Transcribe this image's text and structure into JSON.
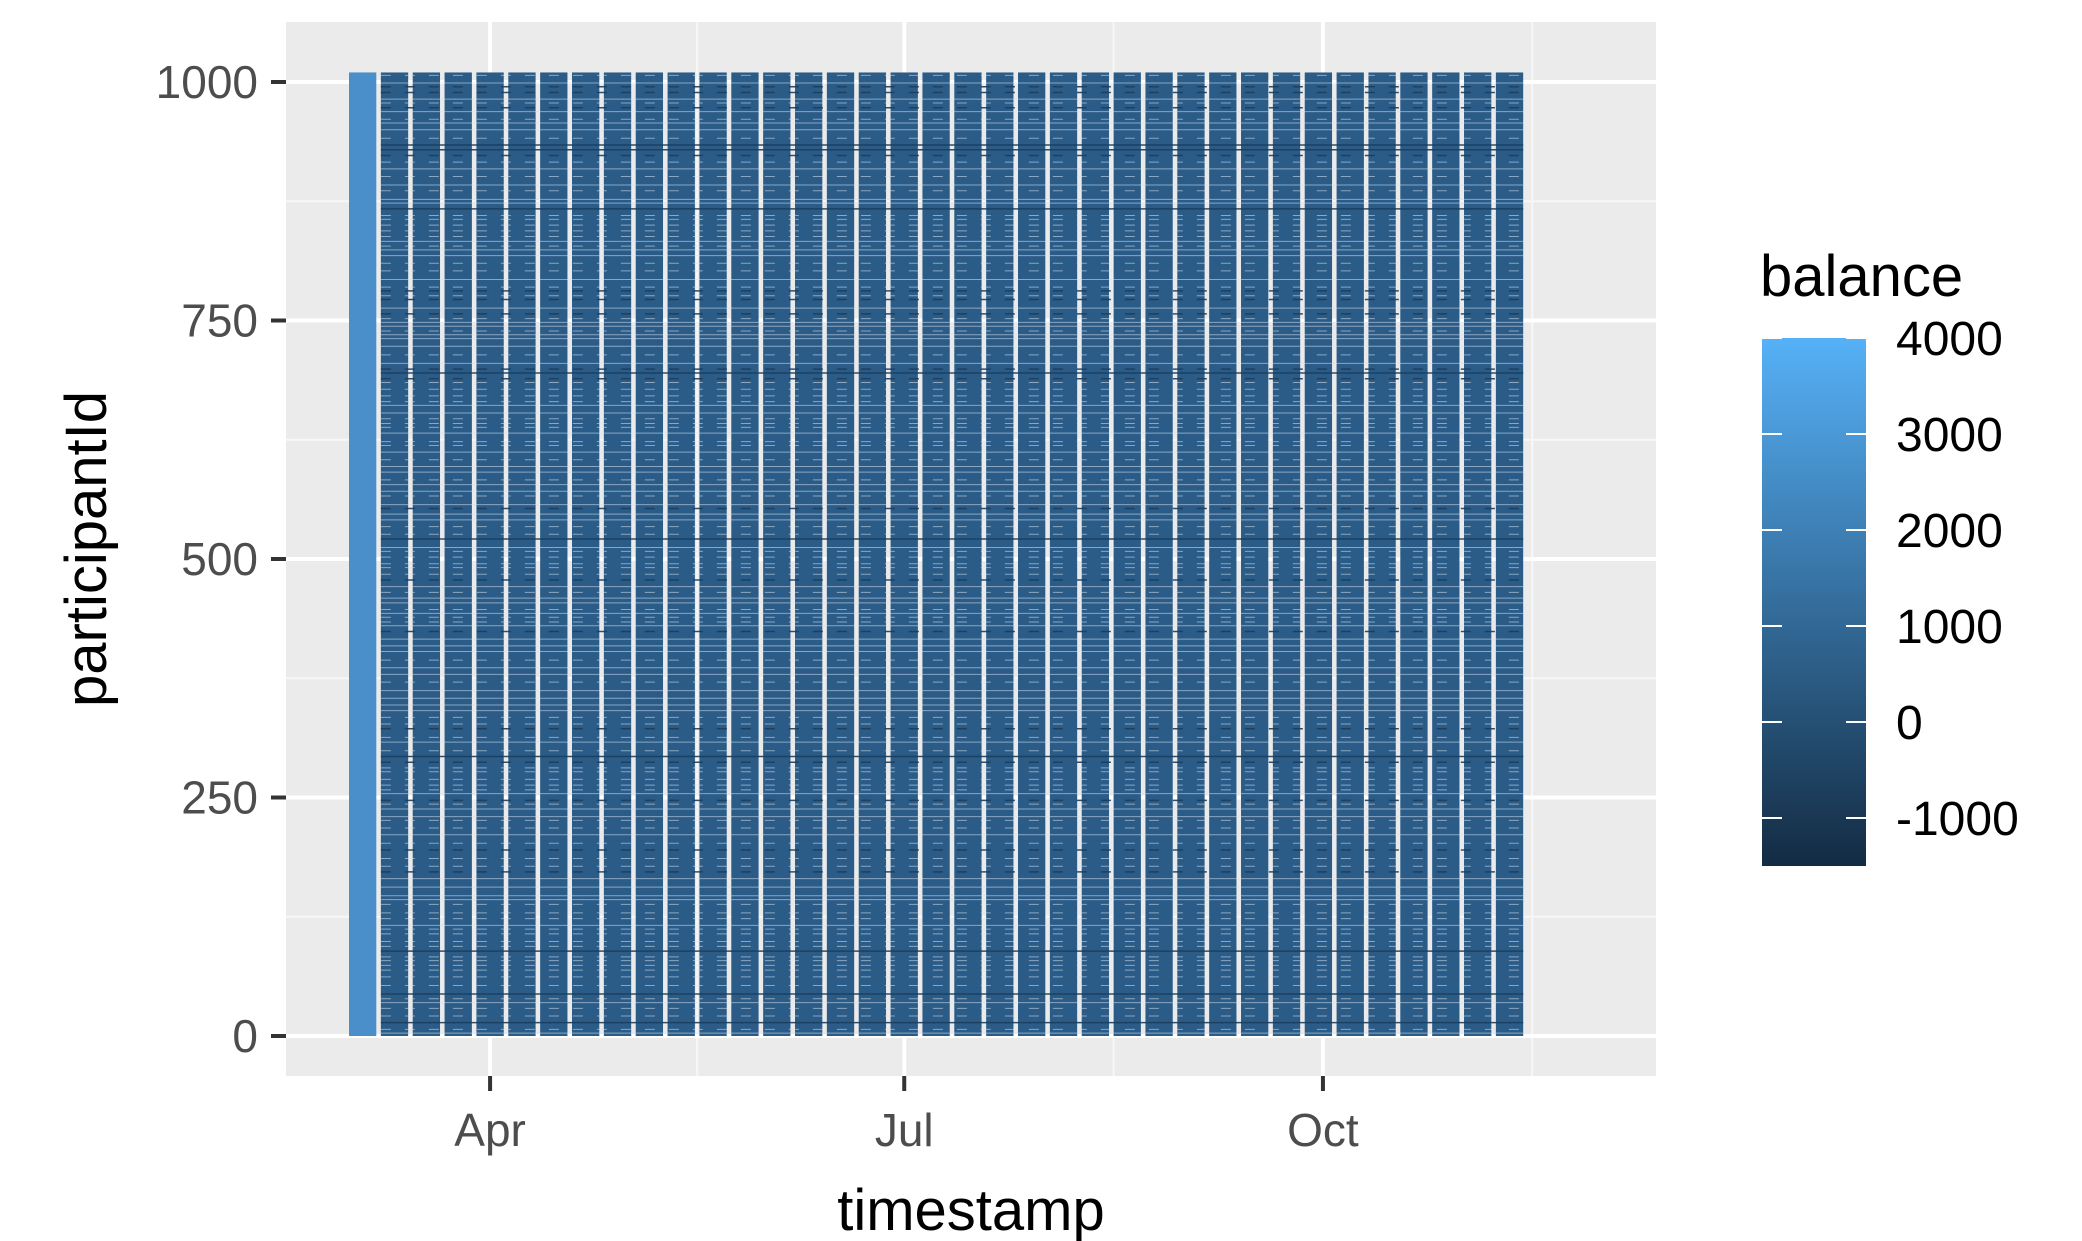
{
  "chart_data": {
    "type": "heatmap",
    "title": "",
    "xlabel": "timestamp",
    "ylabel": "participantId",
    "x_axis": {
      "type": "date",
      "range": [
        "2022-03-01",
        "2022-11-30"
      ],
      "tick_values": [
        "2022-04-01",
        "2022-07-01",
        "2022-10-01"
      ],
      "tick_labels": [
        "Apr",
        "Jul",
        "Oct"
      ]
    },
    "y_axis": {
      "range": [
        0,
        1010
      ],
      "tick_values": [
        0,
        250,
        500,
        750,
        1000
      ],
      "tick_labels": [
        "0",
        "250",
        "500",
        "750",
        "1000"
      ]
    },
    "grid": true,
    "tile_columns": {
      "first_start": "2022-03-01",
      "first_end": "2022-03-07",
      "first_color": "#4a8fc9",
      "start": "2022-03-08",
      "period_days": 7,
      "width_days": 6,
      "count": 36,
      "color": "#2b5c88"
    },
    "fill_scale": {
      "name": "balance",
      "min": -1500,
      "max": 4000,
      "low_color": "#132b43",
      "high_color": "#56b1f7",
      "breaks": [
        4000,
        3000,
        2000,
        1000,
        0,
        -1000
      ],
      "break_labels": [
        "4000",
        "3000",
        "2000",
        "1000",
        "0",
        "-1000"
      ]
    },
    "legend": {
      "title": "balance",
      "placement": "right"
    }
  }
}
